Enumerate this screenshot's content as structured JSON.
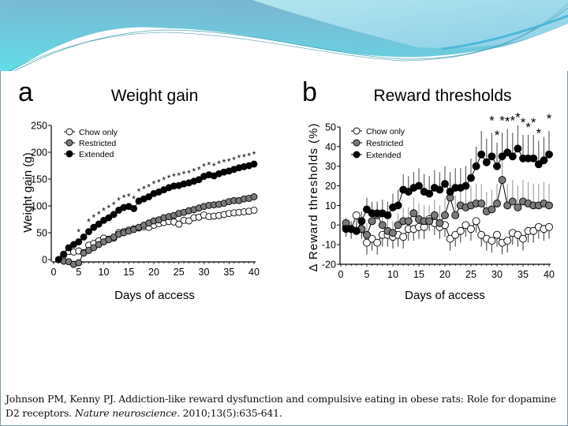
{
  "slide": {
    "theme_colors": {
      "wave_dark": "#7fbfd6",
      "wave_light": "#a8dce8",
      "wave_cyan": "#5fd6e6",
      "frame": "#7a9aa8"
    }
  },
  "citation": {
    "authors_title": "Johnson PM, Kenny PJ. Addiction-like reward dysfunction and compulsive eating in obese rats: Role for dopamine D2 receptors.",
    "journal": "Nature neuroscience.",
    "details": "2010;13(5):635-641."
  },
  "chart_data": [
    {
      "panel_label": "a",
      "type": "line",
      "title": "Weight gain",
      "xlabel": "Days of access",
      "ylabel": "Weight gain (g)",
      "xlim": [
        0,
        40
      ],
      "ylim": [
        0,
        250
      ],
      "xticks": [
        "0",
        "5",
        "10",
        "15",
        "20",
        "25",
        "30",
        "35",
        "40"
      ],
      "yticks": [
        "0",
        "50",
        "100",
        "150",
        "200",
        "250"
      ],
      "legend": {
        "position": "top-left",
        "entries": [
          "Chow only",
          "Restricted",
          "Extended"
        ]
      },
      "x": [
        1,
        2,
        3,
        4,
        5,
        6,
        7,
        8,
        9,
        10,
        11,
        12,
        13,
        14,
        15,
        16,
        17,
        18,
        19,
        20,
        21,
        22,
        23,
        24,
        25,
        26,
        27,
        28,
        29,
        30,
        31,
        32,
        33,
        34,
        35,
        36,
        37,
        38,
        39,
        40
      ],
      "series": [
        {
          "name": "Chow only",
          "marker": "open-circle",
          "color": "#ffffff",
          "values": [
            0,
            8,
            15,
            14,
            16,
            13,
            27,
            30,
            35,
            40,
            38,
            40,
            50,
            52,
            55,
            57,
            59,
            61,
            60,
            64,
            67,
            69,
            71,
            70,
            66,
            73,
            72,
            78,
            79,
            83,
            80,
            81,
            82,
            84,
            86,
            87,
            88,
            89,
            90,
            92
          ]
        },
        {
          "name": "Restricted",
          "marker": "gray-circle",
          "color": "#7a7a7a",
          "values": [
            0,
            -3,
            -4,
            -9,
            -6,
            12,
            17,
            22,
            28,
            33,
            37,
            42,
            47,
            50,
            53,
            56,
            60,
            64,
            68,
            72,
            74,
            78,
            80,
            82,
            86,
            88,
            91,
            93,
            96,
            99,
            101,
            102,
            103,
            105,
            108,
            110,
            110,
            113,
            114,
            117
          ]
        },
        {
          "name": "Extended",
          "marker": "filled-circle",
          "color": "#000000",
          "values": [
            0,
            10,
            22,
            28,
            33,
            42,
            52,
            60,
            66,
            73,
            78,
            84,
            92,
            97,
            99,
            95,
            109,
            113,
            117,
            123,
            126,
            130,
            134,
            137,
            138,
            141,
            143,
            146,
            149,
            155,
            158,
            156,
            160,
            163,
            165,
            168,
            171,
            173,
            175,
            178
          ]
        }
      ],
      "significance_markers": {
        "symbol": "*",
        "days": [
          5,
          7,
          8,
          9,
          10,
          11,
          12,
          13,
          14,
          15,
          16,
          17,
          18,
          19,
          20,
          21,
          22,
          23,
          24,
          25,
          26,
          27,
          28,
          29,
          30,
          31,
          32,
          33,
          34,
          35,
          36,
          37,
          38,
          39,
          40
        ]
      }
    },
    {
      "panel_label": "b",
      "type": "line",
      "title": "Reward thresholds",
      "xlabel": "Days of access",
      "ylabel": "Δ Reward thresholds (%)",
      "xlim": [
        0,
        40
      ],
      "ylim": [
        -20,
        50
      ],
      "xticks": [
        "0",
        "5",
        "10",
        "15",
        "20",
        "25",
        "30",
        "35",
        "40"
      ],
      "yticks": [
        "-20",
        "-10",
        "0",
        "10",
        "20",
        "30",
        "40",
        "50"
      ],
      "legend": {
        "position": "top-left",
        "entries": [
          "Chow only",
          "Restricted",
          "Extended"
        ]
      },
      "x": [
        1,
        2,
        3,
        4,
        5,
        6,
        7,
        8,
        9,
        10,
        11,
        12,
        13,
        14,
        15,
        16,
        17,
        18,
        19,
        20,
        21,
        22,
        23,
        24,
        25,
        26,
        27,
        28,
        29,
        30,
        31,
        32,
        33,
        34,
        35,
        36,
        37,
        38,
        39,
        40
      ],
      "series": [
        {
          "name": "Chow only",
          "marker": "open-circle",
          "color": "#ffffff",
          "values": [
            -1,
            -2,
            5,
            -2,
            -9,
            -7,
            -9,
            -5,
            -5,
            -6,
            -5,
            -6,
            -2,
            -2,
            -1,
            -1,
            3,
            1,
            -1,
            0,
            -7,
            -5,
            -3,
            0,
            -2,
            2,
            -5,
            -7,
            -8,
            -5,
            -9,
            -8,
            -4,
            -5,
            -7,
            -3,
            -3,
            -1,
            -2,
            -1
          ],
          "error": [
            5,
            5,
            5,
            5,
            6,
            6,
            6,
            6,
            6,
            6,
            6,
            6,
            6,
            6,
            6,
            6,
            6,
            6,
            6,
            6,
            6,
            6,
            6,
            6,
            6,
            6,
            6,
            6,
            6,
            6,
            6,
            6,
            6,
            6,
            6,
            6,
            6,
            6,
            6,
            6
          ]
        },
        {
          "name": "Restricted",
          "marker": "gray-circle",
          "color": "#7a7a7a",
          "values": [
            1,
            -2,
            -3,
            -2,
            -5,
            2,
            5,
            0,
            -3,
            -4,
            0,
            2,
            2,
            6,
            3,
            2,
            2,
            5,
            1,
            5,
            14,
            5,
            10,
            9,
            10,
            11,
            11,
            7,
            8,
            11,
            23,
            10,
            12,
            9,
            12,
            11,
            10,
            10,
            11,
            10
          ],
          "error": [
            3,
            3,
            4,
            4,
            6,
            6,
            6,
            6,
            6,
            6,
            6,
            7,
            7,
            8,
            8,
            8,
            8,
            8,
            9,
            9,
            10,
            10,
            10,
            10,
            10,
            10,
            10,
            10,
            10,
            10,
            11,
            11,
            11,
            11,
            11,
            11,
            11,
            11,
            11,
            11
          ]
        },
        {
          "name": "Extended",
          "marker": "filled-circle",
          "color": "#000000",
          "values": [
            -2,
            -2,
            -3,
            2,
            8,
            6,
            6,
            6,
            5,
            9,
            10,
            18,
            17,
            19,
            20,
            17,
            16,
            19,
            18,
            21,
            17,
            19,
            19,
            20,
            24,
            30,
            36,
            32,
            35,
            30,
            35,
            37,
            35,
            39,
            34,
            34,
            34,
            31,
            33,
            36
          ],
          "error": [
            4,
            4,
            4,
            5,
            6,
            6,
            6,
            7,
            7,
            7,
            8,
            8,
            8,
            8,
            9,
            9,
            9,
            9,
            9,
            9,
            10,
            10,
            10,
            10,
            10,
            10,
            12,
            12,
            12,
            12,
            12,
            12,
            12,
            12,
            12,
            12,
            12,
            12,
            12,
            12
          ]
        }
      ],
      "significance_markers": {
        "symbol": "*",
        "days": [
          29,
          30,
          31,
          32,
          33,
          34,
          35,
          36,
          37,
          38,
          40
        ]
      }
    }
  ]
}
